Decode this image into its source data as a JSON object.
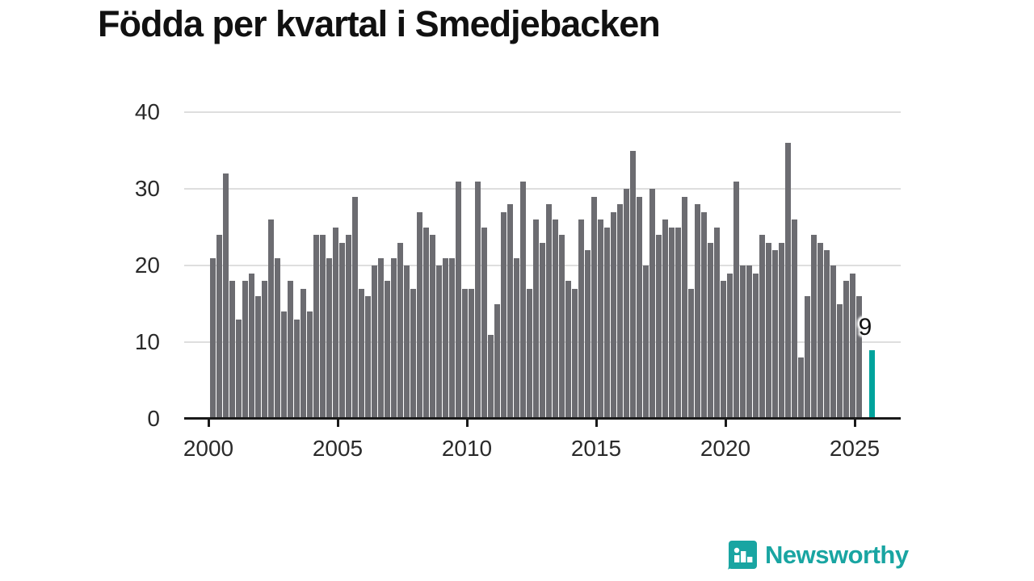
{
  "title": "Födda per kvartal i Smedjebacken",
  "logo": {
    "text": "Newsworthy"
  },
  "chart_data": {
    "type": "bar",
    "title": "Födda per kvartal i Smedjebacken",
    "xlabel": "",
    "ylabel": "",
    "ylim": [
      0,
      40
    ],
    "grid": "horizontal",
    "y_tick_labels": [
      "0",
      "10",
      "20",
      "30",
      "40"
    ],
    "x_tick_labels": [
      "2000",
      "2005",
      "2010",
      "2015",
      "2020",
      "2025"
    ],
    "start_quarter": "2000-Q1",
    "end_quarter": "2025-Q3",
    "note": "values are quarterly counts; null = no bar shown (2025-Q2)",
    "values": [
      21,
      24,
      32,
      18,
      13,
      18,
      19,
      16,
      18,
      26,
      21,
      14,
      18,
      13,
      17,
      14,
      24,
      24,
      21,
      25,
      23,
      24,
      29,
      17,
      16,
      20,
      21,
      18,
      21,
      23,
      20,
      17,
      27,
      25,
      24,
      20,
      21,
      21,
      31,
      17,
      17,
      31,
      25,
      11,
      15,
      27,
      28,
      21,
      31,
      17,
      26,
      23,
      28,
      26,
      24,
      18,
      17,
      26,
      22,
      29,
      26,
      25,
      27,
      28,
      30,
      35,
      29,
      20,
      30,
      24,
      26,
      25,
      25,
      29,
      17,
      28,
      27,
      23,
      25,
      18,
      19,
      31,
      20,
      20,
      19,
      24,
      23,
      22,
      23,
      36,
      26,
      8,
      16,
      24,
      23,
      22,
      20,
      15,
      18,
      19,
      16,
      null,
      9
    ],
    "highlight": {
      "quarter": "2025-Q3",
      "index": 102,
      "value": 9,
      "label": "9"
    },
    "colors": {
      "bar": "#6c6c71",
      "highlight": "#00a39c",
      "gridline": "#dedede",
      "axis": "#1a1a1a",
      "brand_teal": "#19a5a2"
    }
  }
}
